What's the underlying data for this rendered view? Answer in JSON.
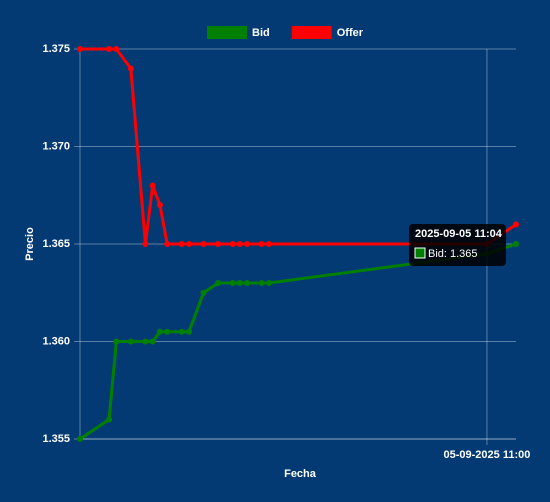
{
  "chart_data": {
    "type": "line",
    "x_label": "Fecha",
    "y_label": "Precio",
    "x": [
      "2025-09-05 10:04",
      "2025-09-05 10:08",
      "2025-09-05 10:09",
      "2025-09-05 10:11",
      "2025-09-05 10:13",
      "2025-09-05 10:14",
      "2025-09-05 10:15",
      "2025-09-05 10:16",
      "2025-09-05 10:18",
      "2025-09-05 10:19",
      "2025-09-05 10:21",
      "2025-09-05 10:23",
      "2025-09-05 10:25",
      "2025-09-05 10:26",
      "2025-09-05 10:27",
      "2025-09-05 10:29",
      "2025-09-05 10:30",
      "2025-09-05 11:00",
      "2025-09-05 11:04"
    ],
    "series": [
      {
        "name": "Bid",
        "color": "#008000",
        "values": [
          1.355,
          1.356,
          1.36,
          1.36,
          1.36,
          1.36,
          1.3605,
          1.3605,
          1.3605,
          1.3605,
          1.3625,
          1.363,
          1.363,
          1.363,
          1.363,
          1.363,
          1.363,
          1.3645,
          1.365
        ]
      },
      {
        "name": "Offer",
        "color": "#ff0000",
        "values": [
          1.375,
          1.375,
          1.375,
          1.374,
          1.365,
          1.368,
          1.367,
          1.365,
          1.365,
          1.365,
          1.365,
          1.365,
          1.365,
          1.365,
          1.365,
          1.365,
          1.365,
          1.365,
          1.366
        ]
      }
    ],
    "xlim": [
      "2025-09-05 10:04",
      "2025-09-05 11:04"
    ],
    "xticks": [
      {
        "value": "2025-09-05 11:00",
        "label": "05-09-2025 11:00"
      }
    ],
    "ylim": [
      1.355,
      1.375
    ],
    "yticks": [
      1.355,
      {
        "value": 1.36,
        "label": "1.360"
      },
      1.365,
      {
        "value": 1.37,
        "label": "1.370"
      },
      1.375
    ],
    "grid": true,
    "legend": "top",
    "tooltip": {
      "title": "2025-09-05 11:04",
      "label": "Bid: 1.365"
    }
  }
}
